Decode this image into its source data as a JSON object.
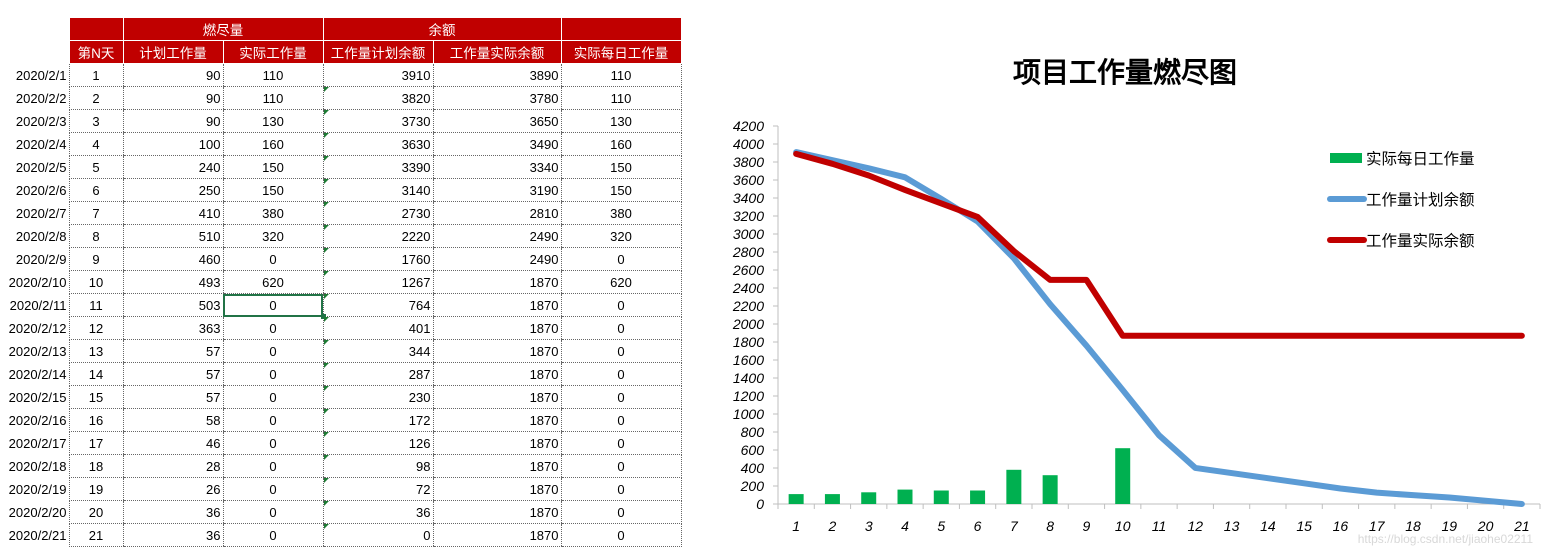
{
  "table": {
    "group_headers": {
      "burn": "燃尽量",
      "remaining": "余额"
    },
    "headers": {
      "day": "第N天",
      "planned_work": "计划工作量",
      "actual_work": "实际工作量",
      "planned_remaining": "工作量计划余额",
      "actual_remaining": "工作量实际余额",
      "actual_daily": "实际每日工作量"
    },
    "rows": [
      {
        "date": "2020/2/1",
        "n": "1",
        "plan": "90",
        "actual": "110",
        "plan_rem": "3910",
        "act_rem": "3890",
        "daily": "110"
      },
      {
        "date": "2020/2/2",
        "n": "2",
        "plan": "90",
        "actual": "110",
        "plan_rem": "3820",
        "act_rem": "3780",
        "daily": "110"
      },
      {
        "date": "2020/2/3",
        "n": "3",
        "plan": "90",
        "actual": "130",
        "plan_rem": "3730",
        "act_rem": "3650",
        "daily": "130"
      },
      {
        "date": "2020/2/4",
        "n": "4",
        "plan": "100",
        "actual": "160",
        "plan_rem": "3630",
        "act_rem": "3490",
        "daily": "160"
      },
      {
        "date": "2020/2/5",
        "n": "5",
        "plan": "240",
        "actual": "150",
        "plan_rem": "3390",
        "act_rem": "3340",
        "daily": "150"
      },
      {
        "date": "2020/2/6",
        "n": "6",
        "plan": "250",
        "actual": "150",
        "plan_rem": "3140",
        "act_rem": "3190",
        "daily": "150"
      },
      {
        "date": "2020/2/7",
        "n": "7",
        "plan": "410",
        "actual": "380",
        "plan_rem": "2730",
        "act_rem": "2810",
        "daily": "380"
      },
      {
        "date": "2020/2/8",
        "n": "8",
        "plan": "510",
        "actual": "320",
        "plan_rem": "2220",
        "act_rem": "2490",
        "daily": "320"
      },
      {
        "date": "2020/2/9",
        "n": "9",
        "plan": "460",
        "actual": "0",
        "plan_rem": "1760",
        "act_rem": "2490",
        "daily": "0"
      },
      {
        "date": "2020/2/10",
        "n": "10",
        "plan": "493",
        "actual": "620",
        "plan_rem": "1267",
        "act_rem": "1870",
        "daily": "620"
      },
      {
        "date": "2020/2/11",
        "n": "11",
        "plan": "503",
        "actual": "0",
        "plan_rem": "764",
        "act_rem": "1870",
        "daily": "0"
      },
      {
        "date": "2020/2/12",
        "n": "12",
        "plan": "363",
        "actual": "0",
        "plan_rem": "401",
        "act_rem": "1870",
        "daily": "0"
      },
      {
        "date": "2020/2/13",
        "n": "13",
        "plan": "57",
        "actual": "0",
        "plan_rem": "344",
        "act_rem": "1870",
        "daily": "0"
      },
      {
        "date": "2020/2/14",
        "n": "14",
        "plan": "57",
        "actual": "0",
        "plan_rem": "287",
        "act_rem": "1870",
        "daily": "0"
      },
      {
        "date": "2020/2/15",
        "n": "15",
        "plan": "57",
        "actual": "0",
        "plan_rem": "230",
        "act_rem": "1870",
        "daily": "0"
      },
      {
        "date": "2020/2/16",
        "n": "16",
        "plan": "58",
        "actual": "0",
        "plan_rem": "172",
        "act_rem": "1870",
        "daily": "0"
      },
      {
        "date": "2020/2/17",
        "n": "17",
        "plan": "46",
        "actual": "0",
        "plan_rem": "126",
        "act_rem": "1870",
        "daily": "0"
      },
      {
        "date": "2020/2/18",
        "n": "18",
        "plan": "28",
        "actual": "0",
        "plan_rem": "98",
        "act_rem": "1870",
        "daily": "0"
      },
      {
        "date": "2020/2/19",
        "n": "19",
        "plan": "26",
        "actual": "0",
        "plan_rem": "72",
        "act_rem": "1870",
        "daily": "0"
      },
      {
        "date": "2020/2/20",
        "n": "20",
        "plan": "36",
        "actual": "0",
        "plan_rem": "36",
        "act_rem": "1870",
        "daily": "0"
      },
      {
        "date": "2020/2/21",
        "n": "21",
        "plan": "36",
        "actual": "0",
        "plan_rem": "0",
        "act_rem": "1870",
        "daily": "0"
      }
    ]
  },
  "chart_data": {
    "type": "line",
    "title": "项目工作量燃尽图",
    "categories": [
      "1",
      "2",
      "3",
      "4",
      "5",
      "6",
      "7",
      "8",
      "9",
      "10",
      "11",
      "12",
      "13",
      "14",
      "15",
      "16",
      "17",
      "18",
      "19",
      "20",
      "21"
    ],
    "ylim": [
      0,
      4200
    ],
    "ytick_step": 200,
    "grid": false,
    "legend_position": "top-right",
    "series": [
      {
        "name": "实际每日工作量",
        "type": "bar",
        "color": "#00b050",
        "values": [
          110,
          110,
          130,
          160,
          150,
          150,
          380,
          320,
          0,
          620,
          0,
          0,
          0,
          0,
          0,
          0,
          0,
          0,
          0,
          0,
          0
        ]
      },
      {
        "name": "工作量计划余额",
        "type": "line",
        "color": "#5b9bd5",
        "values": [
          3910,
          3820,
          3730,
          3630,
          3390,
          3140,
          2730,
          2220,
          1760,
          1267,
          764,
          401,
          344,
          287,
          230,
          172,
          126,
          98,
          72,
          36,
          0
        ]
      },
      {
        "name": "工作量实际余额",
        "type": "line",
        "color": "#c00000",
        "values": [
          3890,
          3780,
          3650,
          3490,
          3340,
          3190,
          2810,
          2490,
          2490,
          1870,
          1870,
          1870,
          1870,
          1870,
          1870,
          1870,
          1870,
          1870,
          1870,
          1870,
          1870
        ]
      }
    ]
  },
  "watermark": "https://blog.csdn.net/jiaohe02211"
}
